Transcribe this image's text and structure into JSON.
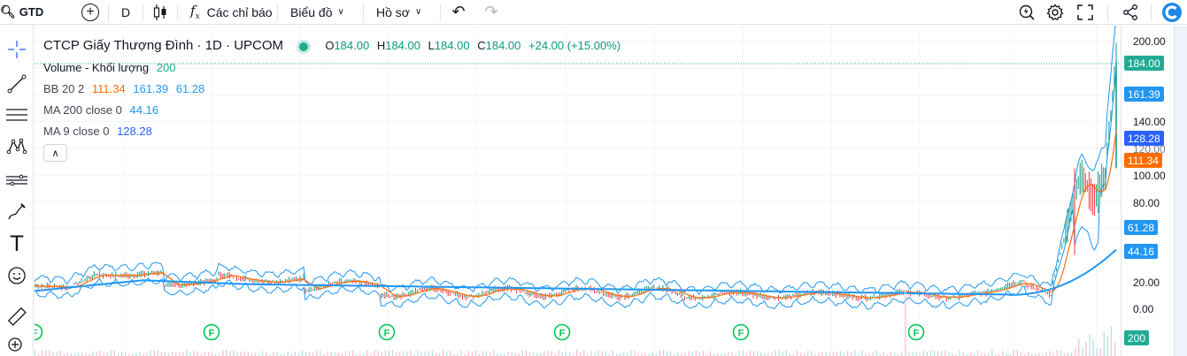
{
  "toolbar": {
    "symbol": "GTD",
    "interval": "D",
    "indicators_label": "Các chỉ báo",
    "chart_label": "Biểu đồ",
    "profile_label": "Hồ sơ"
  },
  "legend": {
    "title": "CTCP Giấy Thượng Đình · 1D · UPCOM",
    "ohlc": {
      "o_label": "O",
      "o": "184.00",
      "h_label": "H",
      "h": "184.00",
      "l_label": "L",
      "l": "184.00",
      "c_label": "C",
      "c": "184.00",
      "change": "+24.00 (+15.00%)"
    },
    "volume": {
      "label": "Volume - Khối lượng",
      "value": "200"
    },
    "bb": {
      "label": "BB 20 2",
      "v1": "111.34",
      "v2": "161.39",
      "v3": "61.28"
    },
    "ma200": {
      "label": "MA 200 close 0",
      "value": "44.16"
    },
    "ma9": {
      "label": "MA 9 close 0",
      "value": "128.28"
    }
  },
  "axis": {
    "ticks": [
      "200.00",
      "140.00",
      "120.00",
      "100.00",
      "80.00",
      "20.00",
      "0.00"
    ],
    "tags": {
      "last": "184.00",
      "bb_upper": "161.39",
      "ma9": "128.28",
      "bb_mid": "111.34",
      "bb_lower": "61.28",
      "ma200": "44.16",
      "volume": "200"
    }
  },
  "events": {
    "marker_label": "F"
  },
  "colors": {
    "up": "#089981",
    "down": "#f23645",
    "bb_mid": "#ff6d00",
    "bb_band": "#2196f3",
    "ma200": "#2196f3",
    "ma9": "#2962ff",
    "last_tag": "#22ab94"
  }
}
